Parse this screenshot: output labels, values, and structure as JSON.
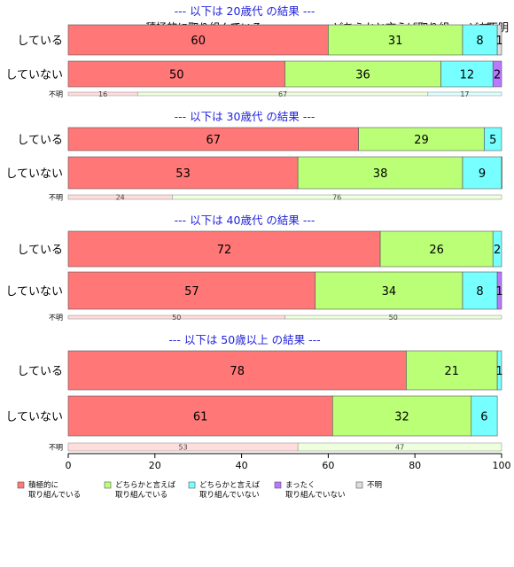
{
  "chart_data": {
    "type": "bar",
    "orientation": "horizontal",
    "stacked": true,
    "xlim": [
      0,
      100
    ],
    "x_ticks": [
      "0",
      "20",
      "40",
      "60",
      "80",
      "100"
    ],
    "top_headers": [
      "積極的に取り組んでいる",
      "どちらかと言えば取り組..",
      "どち",
      "まっ",
      "不明"
    ],
    "categories": [
      "積極的に取り組んでいる",
      "どちらかと言えば取り組んでいる",
      "どちらかと言えば取り組んでいない",
      "まったく取り組んでいない",
      "不明"
    ],
    "legend": [
      {
        "line1": "積極的に",
        "line2": "取り組んでいる",
        "color": "#ff7777"
      },
      {
        "line1": "どちらかと言えば",
        "line2": "取り組んでいる",
        "color": "#bbff77"
      },
      {
        "line1": "どちらかと言えば",
        "line2": "取り組んでいない",
        "color": "#77ffff"
      },
      {
        "line1": "まったく",
        "line2": "取り組んでいない",
        "color": "#bb77ff"
      },
      {
        "line1": "不明",
        "line2": "",
        "color": "#dddddd"
      }
    ],
    "legend_placement": "bottom",
    "groups": [
      {
        "title": "--- 以下は 20歳代 の結果 ---",
        "rows": [
          {
            "label": "している",
            "values": [
              60,
              31,
              8,
              0,
              1
            ],
            "labels": [
              "60",
              "31",
              "8",
              "",
              "1"
            ]
          },
          {
            "label": "していない",
            "values": [
              50,
              36,
              12,
              2,
              0
            ],
            "labels": [
              "50",
              "36",
              "12",
              "2",
              ""
            ]
          }
        ],
        "unknown": {
          "label": "不明",
          "values": [
            16,
            67,
            17
          ],
          "labels": [
            "16",
            "67",
            "17"
          ]
        }
      },
      {
        "title": "--- 以下は 30歳代 の結果 ---",
        "rows": [
          {
            "label": "している",
            "values": [
              67,
              29,
              5,
              0,
              0
            ],
            "labels": [
              "67",
              "29",
              "5",
              "",
              ""
            ]
          },
          {
            "label": "していない",
            "values": [
              53,
              38,
              9,
              0.5,
              0
            ],
            "labels": [
              "53",
              "38",
              "9",
              "",
              ""
            ]
          }
        ],
        "unknown": {
          "label": "不明",
          "values": [
            24,
            76,
            0
          ],
          "labels": [
            "24",
            "76",
            ""
          ]
        }
      },
      {
        "title": "--- 以下は 40歳代 の結果 ---",
        "rows": [
          {
            "label": "している",
            "values": [
              72,
              26,
              2,
              0,
              0
            ],
            "labels": [
              "72",
              "26",
              "2",
              "",
              ""
            ]
          },
          {
            "label": "していない",
            "values": [
              57,
              34,
              8,
              1,
              0
            ],
            "labels": [
              "57",
              "34",
              "8",
              "1",
              ""
            ]
          }
        ],
        "unknown": {
          "label": "不明",
          "values": [
            50,
            50,
            0
          ],
          "labels": [
            "50",
            "50",
            ""
          ]
        }
      },
      {
        "title": "--- 以下は 50歳以上 の結果 ---",
        "rows": [
          {
            "label": "している",
            "values": [
              78,
              21,
              1,
              0,
              0
            ],
            "labels": [
              "78",
              "21",
              "1",
              "",
              ""
            ]
          },
          {
            "label": "していない",
            "values": [
              61,
              32,
              6,
              0,
              0
            ],
            "labels": [
              "61",
              "32",
              "6",
              "",
              ""
            ]
          }
        ],
        "unknown": {
          "label": "不明",
          "values": [
            53,
            47,
            0
          ],
          "labels": [
            "53",
            "47",
            ""
          ]
        }
      }
    ]
  }
}
